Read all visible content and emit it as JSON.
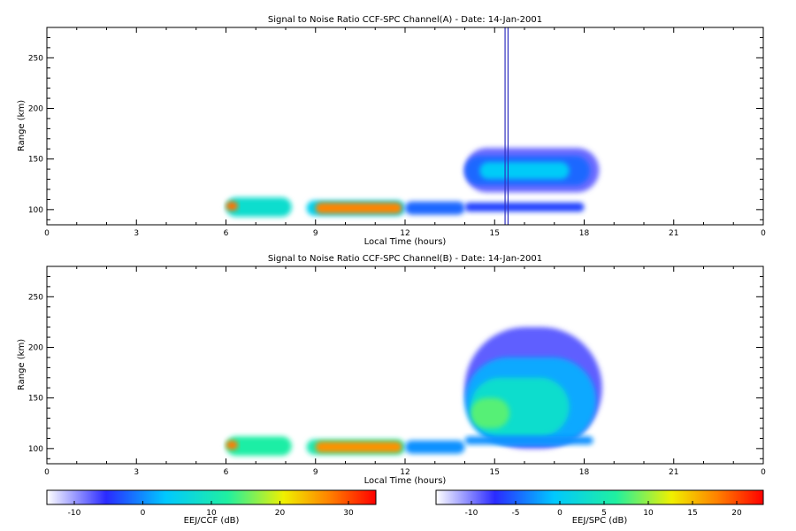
{
  "chart_data": [
    {
      "type": "heatmap",
      "title": "Signal to Noise Ratio CCF-SPC Channel(A) - Date: 14-Jan-2001",
      "xlabel": "Local Time (hours)",
      "ylabel": "Range (km)",
      "xlim": [
        0,
        24
      ],
      "ylim": [
        85,
        280
      ],
      "xticks": [
        "0",
        "3",
        "6",
        "9",
        "12",
        "15",
        "18",
        "21",
        "0"
      ],
      "yticks": [
        100,
        150,
        200,
        250
      ],
      "blobs": [
        {
          "x0": 6.0,
          "x1": 8.2,
          "y0": 93,
          "y1": 112,
          "value": 8
        },
        {
          "x0": 6.0,
          "x1": 6.4,
          "y0": 99,
          "y1": 108,
          "value": 28
        },
        {
          "x0": 8.7,
          "x1": 12.0,
          "y0": 94,
          "y1": 109,
          "value": 5
        },
        {
          "x0": 9.0,
          "x1": 11.9,
          "y0": 96,
          "y1": 107,
          "value": 27
        },
        {
          "x0": 12.0,
          "x1": 14.0,
          "y0": 95,
          "y1": 108,
          "value": -2
        },
        {
          "x0": 14.0,
          "x1": 18.5,
          "y0": 117,
          "y1": 161,
          "value": -8
        },
        {
          "x0": 14.0,
          "x1": 18.2,
          "y0": 124,
          "y1": 153,
          "value": -2
        },
        {
          "x0": 14.5,
          "x1": 17.5,
          "y0": 130,
          "y1": 147,
          "value": 4
        },
        {
          "x0": 14.0,
          "x1": 18.0,
          "y0": 98,
          "y1": 107,
          "value": -4
        }
      ],
      "vertical_lines": [
        15.35,
        15.45
      ]
    },
    {
      "type": "heatmap",
      "title": "Signal to Noise Ratio CCF-SPC Channel(B) - Date: 14-Jan-2001",
      "xlabel": "Local Time (hours)",
      "ylabel": "Range (km)",
      "xlim": [
        0,
        24
      ],
      "ylim": [
        85,
        280
      ],
      "xticks": [
        "0",
        "3",
        "6",
        "9",
        "12",
        "15",
        "18",
        "21",
        "0"
      ],
      "yticks": [
        100,
        150,
        200,
        250
      ],
      "blobs": [
        {
          "x0": 6.0,
          "x1": 8.2,
          "y0": 93,
          "y1": 112,
          "value": 6
        },
        {
          "x0": 6.0,
          "x1": 6.4,
          "y0": 99,
          "y1": 108,
          "value": 18
        },
        {
          "x0": 8.7,
          "x1": 12.0,
          "y0": 94,
          "y1": 109,
          "value": 5
        },
        {
          "x0": 9.0,
          "x1": 11.9,
          "y0": 96,
          "y1": 107,
          "value": 17
        },
        {
          "x0": 12.0,
          "x1": 14.0,
          "y0": 95,
          "y1": 108,
          "value": -3
        },
        {
          "x0": 14.0,
          "x1": 18.6,
          "y0": 100,
          "y1": 220,
          "value": -9
        },
        {
          "x0": 14.0,
          "x1": 18.4,
          "y0": 104,
          "y1": 190,
          "value": -2
        },
        {
          "x0": 14.2,
          "x1": 17.5,
          "y0": 112,
          "y1": 170,
          "value": 3
        },
        {
          "x0": 14.2,
          "x1": 15.5,
          "y0": 120,
          "y1": 150,
          "value": 8
        },
        {
          "x0": 14.0,
          "x1": 18.3,
          "y0": 104,
          "y1": 112,
          "value": -3
        }
      ]
    }
  ],
  "colorbars": [
    {
      "label": "EEJ/CCF (dB)",
      "min": -14,
      "max": 34,
      "ticks": [
        -10,
        0,
        10,
        20,
        30
      ]
    },
    {
      "label": "EEJ/SPC (dB)",
      "min": -14,
      "max": 23,
      "ticks": [
        -10,
        -5,
        0,
        5,
        10,
        15,
        20
      ]
    }
  ]
}
